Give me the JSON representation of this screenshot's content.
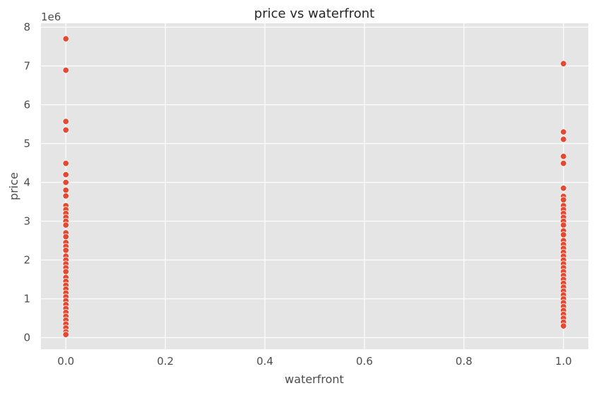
{
  "chart_data": {
    "type": "scatter",
    "title": "price vs waterfront",
    "xlabel": "waterfront",
    "ylabel": "price",
    "y_offset_label": "1e6",
    "xlim": [
      -0.05,
      1.05
    ],
    "ylim": [
      -300000,
      8100000
    ],
    "x_ticks": [
      0.0,
      0.2,
      0.4,
      0.6,
      0.8,
      1.0
    ],
    "x_tick_labels": [
      "0.0",
      "0.2",
      "0.4",
      "0.6",
      "0.8",
      "1.0"
    ],
    "y_ticks": [
      0,
      1000000,
      2000000,
      3000000,
      4000000,
      5000000,
      6000000,
      7000000,
      8000000
    ],
    "y_tick_labels": [
      "0",
      "1",
      "2",
      "3",
      "4",
      "5",
      "6",
      "7",
      "8"
    ],
    "grid": true,
    "colors": {
      "background": "#e5e5e5",
      "grid": "#ffffff",
      "point": "#e24a33",
      "point_edge": "#ffffff"
    },
    "points": [
      {
        "x": 0,
        "y": 7700000
      },
      {
        "x": 0,
        "y": 6890000
      },
      {
        "x": 0,
        "y": 5570000
      },
      {
        "x": 0,
        "y": 5350000
      },
      {
        "x": 0,
        "y": 4490000
      },
      {
        "x": 0,
        "y": 4200000
      },
      {
        "x": 0,
        "y": 4000000
      },
      {
        "x": 0,
        "y": 3800000
      },
      {
        "x": 0,
        "y": 3650000
      },
      {
        "x": 0,
        "y": 3400000
      },
      {
        "x": 0,
        "y": 3300000
      },
      {
        "x": 0,
        "y": 3200000
      },
      {
        "x": 0,
        "y": 3100000
      },
      {
        "x": 0,
        "y": 3000000
      },
      {
        "x": 0,
        "y": 2900000
      },
      {
        "x": 0,
        "y": 2700000
      },
      {
        "x": 0,
        "y": 2600000
      },
      {
        "x": 0,
        "y": 2450000
      },
      {
        "x": 0,
        "y": 2350000
      },
      {
        "x": 0,
        "y": 2250000
      },
      {
        "x": 0,
        "y": 2100000
      },
      {
        "x": 0,
        "y": 2000000
      },
      {
        "x": 0,
        "y": 1900000
      },
      {
        "x": 0,
        "y": 1800000
      },
      {
        "x": 0,
        "y": 1700000
      },
      {
        "x": 0,
        "y": 1550000
      },
      {
        "x": 0,
        "y": 1450000
      },
      {
        "x": 0,
        "y": 1350000
      },
      {
        "x": 0,
        "y": 1250000
      },
      {
        "x": 0,
        "y": 1150000
      },
      {
        "x": 0,
        "y": 1050000
      },
      {
        "x": 0,
        "y": 950000
      },
      {
        "x": 0,
        "y": 850000
      },
      {
        "x": 0,
        "y": 750000
      },
      {
        "x": 0,
        "y": 650000
      },
      {
        "x": 0,
        "y": 550000
      },
      {
        "x": 0,
        "y": 450000
      },
      {
        "x": 0,
        "y": 350000
      },
      {
        "x": 0,
        "y": 250000
      },
      {
        "x": 0,
        "y": 150000
      },
      {
        "x": 0,
        "y": 80000
      },
      {
        "x": 1,
        "y": 7060000
      },
      {
        "x": 1,
        "y": 5300000
      },
      {
        "x": 1,
        "y": 5110000
      },
      {
        "x": 1,
        "y": 4670000
      },
      {
        "x": 1,
        "y": 4490000
      },
      {
        "x": 1,
        "y": 3850000
      },
      {
        "x": 1,
        "y": 3640000
      },
      {
        "x": 1,
        "y": 3550000
      },
      {
        "x": 1,
        "y": 3400000
      },
      {
        "x": 1,
        "y": 3300000
      },
      {
        "x": 1,
        "y": 3200000
      },
      {
        "x": 1,
        "y": 3100000
      },
      {
        "x": 1,
        "y": 3000000
      },
      {
        "x": 1,
        "y": 2900000
      },
      {
        "x": 1,
        "y": 2750000
      },
      {
        "x": 1,
        "y": 2650000
      },
      {
        "x": 1,
        "y": 2500000
      },
      {
        "x": 1,
        "y": 2400000
      },
      {
        "x": 1,
        "y": 2300000
      },
      {
        "x": 1,
        "y": 2200000
      },
      {
        "x": 1,
        "y": 2100000
      },
      {
        "x": 1,
        "y": 2000000
      },
      {
        "x": 1,
        "y": 1900000
      },
      {
        "x": 1,
        "y": 1800000
      },
      {
        "x": 1,
        "y": 1700000
      },
      {
        "x": 1,
        "y": 1600000
      },
      {
        "x": 1,
        "y": 1500000
      },
      {
        "x": 1,
        "y": 1400000
      },
      {
        "x": 1,
        "y": 1300000
      },
      {
        "x": 1,
        "y": 1200000
      },
      {
        "x": 1,
        "y": 1100000
      },
      {
        "x": 1,
        "y": 1000000
      },
      {
        "x": 1,
        "y": 900000
      },
      {
        "x": 1,
        "y": 800000
      },
      {
        "x": 1,
        "y": 700000
      },
      {
        "x": 1,
        "y": 600000
      },
      {
        "x": 1,
        "y": 500000
      },
      {
        "x": 1,
        "y": 400000
      },
      {
        "x": 1,
        "y": 300000
      }
    ]
  }
}
